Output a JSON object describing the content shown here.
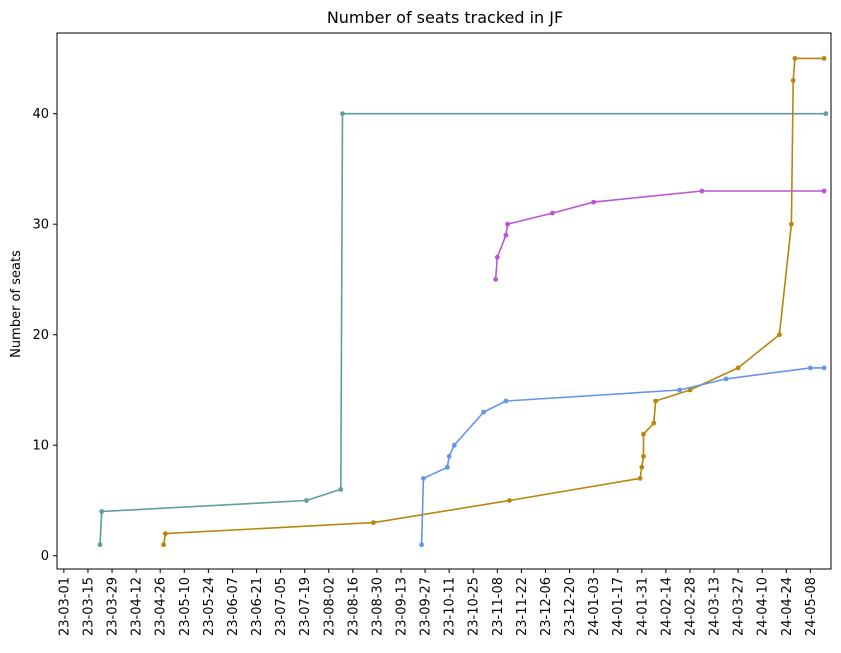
{
  "chart_data": {
    "type": "line",
    "title": "Number of seats tracked in JF",
    "xlabel": "",
    "ylabel": "Number of seats",
    "x_axis_type": "date",
    "xlim": [
      "2023-02-25",
      "2024-05-20"
    ],
    "ylim": [
      -1.2,
      47.3
    ],
    "x_ticks": [
      "2023-03-01",
      "2023-03-15",
      "2023-03-29",
      "2023-04-12",
      "2023-04-26",
      "2023-05-10",
      "2023-05-24",
      "2023-06-07",
      "2023-06-21",
      "2023-07-05",
      "2023-07-19",
      "2023-08-02",
      "2023-08-16",
      "2023-08-30",
      "2023-09-13",
      "2023-09-27",
      "2023-10-11",
      "2023-10-25",
      "2023-11-08",
      "2023-11-22",
      "2023-12-06",
      "2023-12-20",
      "2024-01-03",
      "2024-01-17",
      "2024-01-31",
      "2024-02-14",
      "2024-02-28",
      "2024-03-13",
      "2024-03-27",
      "2024-04-10",
      "2024-04-24",
      "2024-05-08"
    ],
    "x_tick_labels": [
      "23-03-01",
      "23-03-15",
      "23-03-29",
      "23-04-12",
      "23-04-26",
      "23-05-10",
      "23-05-24",
      "23-06-07",
      "23-06-21",
      "23-07-05",
      "23-07-19",
      "23-08-02",
      "23-08-16",
      "23-08-30",
      "23-09-13",
      "23-09-27",
      "23-10-11",
      "23-10-25",
      "23-11-08",
      "23-11-22",
      "23-12-06",
      "23-12-20",
      "24-01-03",
      "24-01-17",
      "24-01-31",
      "24-02-14",
      "24-02-28",
      "24-03-13",
      "24-03-27",
      "24-04-10",
      "24-04-24",
      "24-05-08"
    ],
    "y_ticks": [
      0,
      10,
      20,
      30,
      40
    ],
    "y_tick_labels": [
      "0",
      "10",
      "20",
      "30",
      "40"
    ],
    "grid": false,
    "legend": "none",
    "series": [
      {
        "color": "#5f9ea0",
        "points": [
          [
            "2023-03-22",
            1
          ],
          [
            "2023-03-23",
            4
          ],
          [
            "2023-07-20",
            5
          ],
          [
            "2023-08-09",
            6
          ],
          [
            "2023-08-10",
            40
          ],
          [
            "2024-05-17",
            40
          ]
        ]
      },
      {
        "color": "#b8860b",
        "points": [
          [
            "2023-04-28",
            1
          ],
          [
            "2023-04-29",
            2
          ],
          [
            "2023-08-28",
            3
          ],
          [
            "2023-11-15",
            5
          ],
          [
            "2024-01-30",
            7
          ],
          [
            "2024-01-31",
            8
          ],
          [
            "2024-02-01",
            9
          ],
          [
            "2024-02-01",
            11
          ],
          [
            "2024-02-07",
            12
          ],
          [
            "2024-02-08",
            14
          ],
          [
            "2024-02-28",
            15
          ],
          [
            "2024-03-27",
            17
          ],
          [
            "2024-04-20",
            20
          ],
          [
            "2024-04-27",
            30
          ],
          [
            "2024-04-28",
            43
          ],
          [
            "2024-04-29",
            45
          ],
          [
            "2024-05-16",
            45
          ]
        ]
      },
      {
        "color": "#6495ed",
        "points": [
          [
            "2023-09-25",
            1
          ],
          [
            "2023-09-26",
            7
          ],
          [
            "2023-10-10",
            8
          ],
          [
            "2023-10-11",
            9
          ],
          [
            "2023-10-14",
            10
          ],
          [
            "2023-10-31",
            13
          ],
          [
            "2023-11-13",
            14
          ],
          [
            "2024-02-22",
            15
          ],
          [
            "2024-03-20",
            16
          ],
          [
            "2024-05-08",
            17
          ],
          [
            "2024-05-16",
            17
          ]
        ]
      },
      {
        "color": "#ba55d3",
        "points": [
          [
            "2023-11-07",
            25
          ],
          [
            "2023-11-08",
            27
          ],
          [
            "2023-11-13",
            29
          ],
          [
            "2023-11-14",
            30
          ],
          [
            "2023-12-10",
            31
          ],
          [
            "2024-01-03",
            32
          ],
          [
            "2024-03-06",
            33
          ],
          [
            "2024-05-16",
            33
          ]
        ]
      }
    ]
  }
}
